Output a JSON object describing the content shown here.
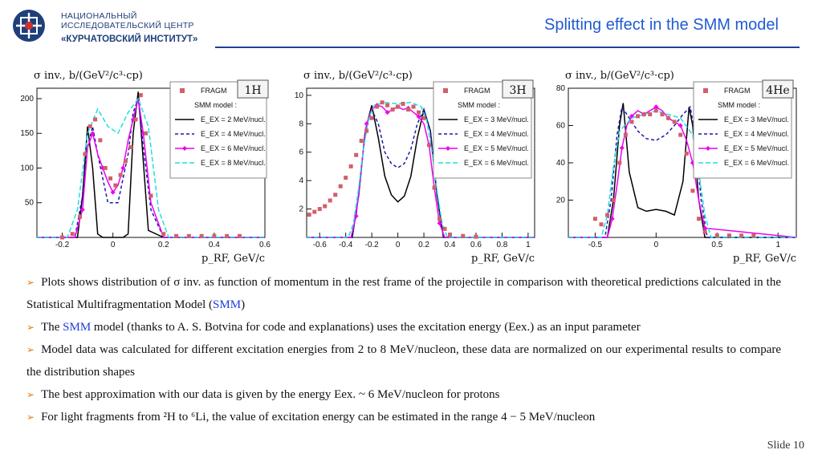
{
  "header": {
    "logo_line1": "НАЦИОНАЛЬНЫЙ",
    "logo_line2": "ИССЛЕДОВАТЕЛЬСКИЙ ЦЕНТР",
    "logo_line3": "«КУРЧАТОВСКИЙ ИНСТИТУТ»",
    "title": "Splitting effect in the SMM model"
  },
  "chart_data": [
    {
      "type": "line",
      "title": "1H",
      "ylabel": "σ inv., b/(GeV²/c³·cp)",
      "xlabel": "p_RF, GeV/c",
      "xlim": [
        -0.3,
        0.6
      ],
      "ylim": [
        0,
        215
      ],
      "xticks": [
        "-0.2",
        "0",
        "0.2",
        "0.4",
        "0.6"
      ],
      "yticks": [
        "50",
        "100",
        "150",
        "200"
      ],
      "legend": [
        "FRAGM",
        "SMM model :",
        "E_EX = 2 MeV/nucl.",
        "E_EX = 4 MeV/nucl.",
        "E_EX = 6 MeV/nucl.",
        "E_EX = 8 MeV/nucl."
      ],
      "series": [
        {
          "name": "FRAGM",
          "x": [
            -0.2,
            -0.16,
            -0.13,
            -0.11,
            -0.09,
            -0.07,
            -0.05,
            -0.03,
            -0.01,
            0.01,
            0.03,
            0.05,
            0.07,
            0.09,
            0.11,
            0.13,
            0.15,
            0.2,
            0.25,
            0.3,
            0.35,
            0.4,
            0.45,
            0.5
          ],
          "y": [
            0,
            5,
            30,
            120,
            160,
            170,
            140,
            100,
            85,
            75,
            90,
            110,
            130,
            170,
            205,
            150,
            60,
            5,
            2,
            2,
            2,
            2,
            2,
            2
          ]
        },
        {
          "name": "E_EX = 2 MeV/nucl.",
          "x": [
            -0.3,
            -0.14,
            -0.12,
            -0.1,
            -0.08,
            -0.06,
            -0.04,
            0,
            0.04,
            0.06,
            0.08,
            0.1,
            0.12,
            0.14,
            0.2,
            0.6
          ],
          "y": [
            0,
            0,
            60,
            160,
            100,
            5,
            0,
            0,
            0,
            5,
            150,
            210,
            110,
            10,
            0,
            0
          ]
        },
        {
          "name": "E_EX = 4 MeV/nucl.",
          "x": [
            -0.3,
            -0.15,
            -0.12,
            -0.1,
            -0.08,
            -0.06,
            -0.02,
            0.02,
            0.06,
            0.08,
            0.1,
            0.12,
            0.15,
            0.2,
            0.6
          ],
          "y": [
            0,
            0,
            60,
            130,
            160,
            120,
            50,
            50,
            120,
            180,
            200,
            130,
            40,
            0,
            0
          ]
        },
        {
          "name": "E_EX = 6 MeV/nucl.",
          "x": [
            -0.3,
            -0.15,
            -0.12,
            -0.1,
            -0.08,
            -0.06,
            -0.04,
            -0.02,
            0,
            0.02,
            0.04,
            0.06,
            0.08,
            0.1,
            0.12,
            0.15,
            0.2,
            0.6
          ],
          "y": [
            0,
            0,
            40,
            130,
            150,
            120,
            100,
            80,
            65,
            75,
            100,
            140,
            170,
            200,
            150,
            50,
            0,
            0
          ]
        },
        {
          "name": "E_EX = 8 MeV/nucl.",
          "x": [
            -0.3,
            -0.18,
            -0.14,
            -0.1,
            -0.06,
            -0.02,
            0.02,
            0.06,
            0.1,
            0.14,
            0.18,
            0.22,
            0.6
          ],
          "y": [
            0,
            0,
            40,
            150,
            185,
            160,
            150,
            180,
            200,
            160,
            40,
            0,
            0
          ]
        }
      ]
    },
    {
      "type": "line",
      "title": "3H",
      "ylabel": "σ inv., b/(GeV²/c³·cp)",
      "xlabel": "p_RF, GeV/c",
      "xlim": [
        -0.7,
        1.05
      ],
      "ylim": [
        0,
        10.5
      ],
      "xticks": [
        "-0.6",
        "-0.4",
        "-0.2",
        "0",
        "0.2",
        "0.4",
        "0.6",
        "0.8",
        "1"
      ],
      "yticks": [
        "2",
        "4",
        "6",
        "8",
        "10"
      ],
      "legend": [
        "FRAGM",
        "SMM model :",
        "E_EX = 3 MeV/nucl.",
        "E_EX = 4 MeV/nucl.",
        "E_EX = 5 MeV/nucl.",
        "E_EX = 6 MeV/nucl."
      ],
      "series": [
        {
          "name": "FRAGM",
          "x": [
            -0.68,
            -0.64,
            -0.6,
            -0.56,
            -0.52,
            -0.48,
            -0.44,
            -0.4,
            -0.36,
            -0.32,
            -0.28,
            -0.24,
            -0.2,
            -0.16,
            -0.12,
            -0.08,
            -0.04,
            0,
            0.04,
            0.08,
            0.12,
            0.16,
            0.2,
            0.24,
            0.28,
            0.32,
            0.36,
            0.4,
            0.5,
            0.6
          ],
          "y": [
            1.6,
            1.8,
            2.0,
            2.2,
            2.6,
            3.0,
            3.6,
            4.2,
            5.0,
            5.8,
            6.8,
            7.5,
            8.4,
            9.2,
            9.5,
            9.3,
            9.0,
            9.2,
            9.4,
            9.0,
            9.2,
            8.8,
            8.4,
            6.5,
            3.5,
            1.3,
            0.6,
            0.2,
            0.1,
            0.05
          ]
        },
        {
          "name": "E_EX = 3 MeV/nucl.",
          "x": [
            -0.7,
            -0.35,
            -0.3,
            -0.25,
            -0.2,
            -0.15,
            -0.1,
            -0.05,
            0,
            0.05,
            0.1,
            0.15,
            0.2,
            0.25,
            0.3,
            0.35,
            1.05
          ],
          "y": [
            0,
            0,
            3,
            7.5,
            9.3,
            7,
            4.3,
            3,
            2.5,
            2.9,
            4.3,
            7,
            9.0,
            7.5,
            3,
            0,
            0
          ]
        },
        {
          "name": "E_EX = 4 MeV/nucl.",
          "x": [
            -0.7,
            -0.35,
            -0.3,
            -0.25,
            -0.2,
            -0.15,
            -0.1,
            -0.05,
            0,
            0.05,
            0.1,
            0.15,
            0.2,
            0.25,
            0.3,
            0.35,
            1.05
          ],
          "y": [
            0,
            0,
            3,
            7.5,
            9,
            8,
            6,
            5.2,
            4.9,
            5.2,
            6.2,
            8,
            9,
            7.5,
            3,
            0,
            0
          ]
        },
        {
          "name": "E_EX = 5 MeV/nucl.",
          "x": [
            -0.7,
            -0.36,
            -0.32,
            -0.28,
            -0.24,
            -0.2,
            -0.16,
            -0.12,
            -0.08,
            -0.04,
            0,
            0.04,
            0.08,
            0.12,
            0.16,
            0.2,
            0.24,
            0.28,
            0.32,
            0.36,
            1.05
          ],
          "y": [
            0,
            0,
            1.5,
            5,
            8,
            9,
            9.3,
            9.2,
            8.8,
            9.0,
            9.2,
            9.0,
            9.1,
            8.8,
            8.5,
            8.0,
            6.5,
            3.5,
            1,
            0,
            0
          ]
        },
        {
          "name": "E_EX = 6 MeV/nucl.",
          "x": [
            -0.7,
            -0.38,
            -0.34,
            -0.3,
            -0.26,
            -0.22,
            -0.18,
            -0.1,
            0,
            0.1,
            0.18,
            0.22,
            0.26,
            0.3,
            0.34,
            0.38,
            1.05
          ],
          "y": [
            0,
            0,
            1,
            3.5,
            6.5,
            8.5,
            9.3,
            9.5,
            9.4,
            9.5,
            9.2,
            8.3,
            6.2,
            3.3,
            1,
            0,
            0
          ]
        }
      ]
    },
    {
      "type": "line",
      "title": "4He",
      "ylabel": "σ inv., b/(GeV²/c³·cp)",
      "xlabel": "p_RF, GeV/c",
      "xlim": [
        -0.72,
        1.15
      ],
      "ylim": [
        0,
        80
      ],
      "xticks": [
        "-0.5",
        "0",
        "0.5",
        "1"
      ],
      "yticks": [
        "20",
        "40",
        "60",
        "80"
      ],
      "legend": [
        "FRAGM",
        "SMM model :",
        "E_EX = 3 MeV/nucl.",
        "E_EX = 4 MeV/nucl.",
        "E_EX = 5 MeV/nucl.",
        "E_EX = 6 MeV/nucl."
      ],
      "series": [
        {
          "name": "FRAGM",
          "x": [
            -0.5,
            -0.45,
            -0.4,
            -0.35,
            -0.3,
            -0.25,
            -0.2,
            -0.15,
            -0.1,
            -0.05,
            0,
            0.05,
            0.1,
            0.15,
            0.2,
            0.25,
            0.3,
            0.35,
            0.4,
            0.5,
            0.6,
            0.7,
            0.8
          ],
          "y": [
            10,
            7,
            12,
            20,
            40,
            55,
            62,
            65,
            66,
            66,
            68,
            66,
            64,
            62,
            55,
            45,
            25,
            10,
            3,
            1,
            1,
            1,
            1
          ]
        },
        {
          "name": "E_EX = 3 MeV/nucl.",
          "x": [
            -0.72,
            -0.4,
            -0.35,
            -0.3,
            -0.27,
            -0.22,
            -0.15,
            -0.08,
            0,
            0.08,
            0.15,
            0.22,
            0.27,
            0.3,
            0.35,
            0.4,
            1.15
          ],
          "y": [
            0,
            0,
            20,
            60,
            72,
            35,
            16,
            14,
            15,
            14,
            12,
            30,
            70,
            60,
            20,
            0,
            0
          ]
        },
        {
          "name": "E_EX = 4 MeV/nucl.",
          "x": [
            -0.72,
            -0.42,
            -0.37,
            -0.32,
            -0.28,
            -0.22,
            -0.15,
            -0.08,
            0,
            0.08,
            0.15,
            0.22,
            0.28,
            0.32,
            0.37,
            0.42,
            1.15
          ],
          "y": [
            0,
            0,
            20,
            55,
            70,
            64,
            57,
            53,
            52,
            55,
            60,
            66,
            70,
            55,
            20,
            0,
            0
          ]
        },
        {
          "name": "E_EX = 5 MeV/nucl.",
          "x": [
            -0.72,
            -0.4,
            -0.36,
            -0.32,
            -0.28,
            -0.24,
            -0.2,
            -0.15,
            -0.1,
            -0.05,
            0,
            0.05,
            0.1,
            0.15,
            0.2,
            0.25,
            0.3,
            0.35,
            0.4,
            1.15
          ],
          "y": [
            0,
            0,
            10,
            28,
            48,
            60,
            65,
            68,
            66,
            68,
            70,
            68,
            64,
            62,
            60,
            52,
            40,
            20,
            5,
            0
          ]
        },
        {
          "name": "E_EX = 6 MeV/nucl.",
          "x": [
            -0.72,
            -0.45,
            -0.4,
            -0.35,
            -0.3,
            -0.2,
            -0.1,
            0,
            0.1,
            0.2,
            0.3,
            0.35,
            0.4,
            0.45,
            1.15
          ],
          "y": [
            0,
            0,
            12,
            38,
            57,
            64,
            66,
            68,
            66,
            64,
            55,
            35,
            12,
            0,
            0
          ]
        }
      ]
    }
  ],
  "bullets": [
    {
      "before": "Plots shows distribution of σ inv. as function of momentum in the rest frame of the projectile in comparison with theoretical predictions calculated in the Statistical Multifragmentation Model (",
      "link": "SMM",
      "after": ")"
    },
    {
      "before": "The ",
      "link": "SMM",
      "after": " model (thanks to A. S. Botvina for code and explanations) uses the excitation energy (Eex.) as an input parameter"
    },
    {
      "before": "Model data was calculated for different excitation energies from 2 to 8 MeV/nucleon, these data are normalized on our experimental results to compare the distribution shapes",
      "link": "",
      "after": ""
    },
    {
      "before": "The best approximation with our data is given by the energy Eex. ~ 6 MeV/nucleon for protons",
      "link": "",
      "after": ""
    },
    {
      "before": "For light fragments from ²H to ⁶Li, the value of excitation energy can be estimated in the range 4 − 5 MeV/nucleon",
      "link": "",
      "after": ""
    }
  ],
  "footer": {
    "slide": "Slide 10"
  },
  "colors": {
    "brand": "#1f3f7a",
    "title": "#1f5bd1",
    "bullet": "#e07b00",
    "fragm": "#d0606a",
    "e1": "#000000",
    "e2": "#1a1aaa",
    "e3": "#ee00ee",
    "e4": "#22dddd"
  }
}
